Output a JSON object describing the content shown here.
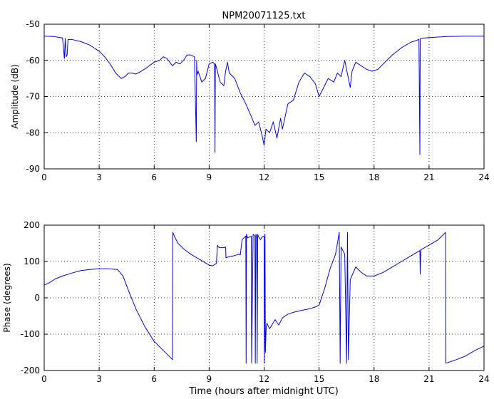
{
  "figure_title": "NPM20071125.txt",
  "chart_data": [
    {
      "type": "line",
      "title": "NPM20071125.txt",
      "xlabel": "",
      "ylabel": "Amplitude (dB)",
      "xlim": [
        0,
        24
      ],
      "ylim": [
        -90,
        -50
      ],
      "xticks": [
        0,
        3,
        6,
        9,
        12,
        15,
        18,
        21,
        24
      ],
      "yticks": [
        -90,
        -80,
        -70,
        -60,
        -50
      ],
      "grid": "dotted",
      "line_color": "#0000ff",
      "series": [
        {
          "name": "",
          "x": [
            0,
            0.5,
            1.0,
            1.1,
            1.15,
            1.2,
            1.25,
            1.3,
            1.5,
            2,
            2.5,
            3,
            3.3,
            3.6,
            3.9,
            4.2,
            4.4,
            4.6,
            4.8,
            5.0,
            5.3,
            5.6,
            6.0,
            6.3,
            6.5,
            6.7,
            7.0,
            7.2,
            7.4,
            7.6,
            7.8,
            8.0,
            8.2,
            8.3,
            8.32,
            8.34,
            8.4,
            8.6,
            8.8,
            9.0,
            9.2,
            9.3,
            9.32,
            9.34,
            9.4,
            9.6,
            9.8,
            9.9,
            10.0,
            10.1,
            10.4,
            10.7,
            11.0,
            11.3,
            11.5,
            11.7,
            11.9,
            12.0,
            12.1,
            12.3,
            12.5,
            12.7,
            12.9,
            13.0,
            13.3,
            13.6,
            13.9,
            14.2,
            14.5,
            14.8,
            15.0,
            15.2,
            15.5,
            15.8,
            16.0,
            16.2,
            16.4,
            16.6,
            16.7,
            16.8,
            17.0,
            17.3,
            17.6,
            17.9,
            18.2,
            18.5,
            19.0,
            19.5,
            20.0,
            20.3,
            20.45,
            20.5,
            20.52,
            20.6,
            21.0,
            22.0,
            23.0,
            24.0
          ],
          "values": [
            -53.3,
            -53.4,
            -53.8,
            -59.5,
            -54,
            -59,
            -58.5,
            -54.2,
            -54.2,
            -54.8,
            -55.8,
            -57.5,
            -59,
            -61,
            -63.5,
            -65,
            -64.5,
            -63.5,
            -63.5,
            -63.8,
            -63,
            -62,
            -60.5,
            -60,
            -59,
            -59.5,
            -61.5,
            -60.5,
            -61,
            -60,
            -58.5,
            -58.5,
            -59,
            -82.5,
            -60,
            -64,
            -63,
            -66,
            -65,
            -61,
            -60.5,
            -61,
            -85.5,
            -61,
            -62,
            -66,
            -67,
            -63,
            -60.5,
            -63.5,
            -65,
            -69,
            -72,
            -75.5,
            -78,
            -77,
            -81,
            -83.5,
            -79,
            -80,
            -77,
            -81.5,
            -76,
            -79,
            -72,
            -71,
            -66,
            -63.5,
            -64.5,
            -66.5,
            -70,
            -68,
            -65,
            -66,
            -63.5,
            -64.5,
            -60,
            -65,
            -67.5,
            -63,
            -60.5,
            -61.5,
            -62.5,
            -63,
            -62.5,
            -61,
            -58.5,
            -56.5,
            -55,
            -54.5,
            -54.2,
            -86,
            -54,
            -53.9,
            -53.7,
            -53.4,
            -53.3,
            -53.3
          ]
        }
      ]
    },
    {
      "type": "line",
      "title": "",
      "xlabel": "Time (hours after midnight UTC)",
      "ylabel": "Phase (degrees)",
      "xlim": [
        0,
        24
      ],
      "ylim": [
        -200,
        200
      ],
      "xticks": [
        0,
        3,
        6,
        9,
        12,
        15,
        18,
        21,
        24
      ],
      "yticks": [
        -200,
        -100,
        0,
        100,
        200
      ],
      "grid": "dotted",
      "line_color": "#0000ff",
      "series": [
        {
          "name": "",
          "x": [
            0,
            0.3,
            0.6,
            1.0,
            1.5,
            2.0,
            2.5,
            3.0,
            3.5,
            4.0,
            4.3,
            4.6,
            5.0,
            5.5,
            6.0,
            6.5,
            7.0,
            7.02,
            7.1,
            7.3,
            7.6,
            8.0,
            8.5,
            9.0,
            9.2,
            9.4,
            9.45,
            9.5,
            9.6,
            9.8,
            9.9,
            9.92,
            10.0,
            10.3,
            10.5,
            10.6,
            10.7,
            10.8,
            10.9,
            11.0,
            11.02,
            11.04,
            11.1,
            11.3,
            11.32,
            11.4,
            11.5,
            11.52,
            11.55,
            11.6,
            11.62,
            11.65,
            11.7,
            11.8,
            11.9,
            12.0,
            12.02,
            12.05,
            12.07,
            12.1,
            12.12,
            12.15,
            12.3,
            12.6,
            12.8,
            13.0,
            13.3,
            13.6,
            14.0,
            14.5,
            14.8,
            15.0,
            15.3,
            15.6,
            15.9,
            16.1,
            16.15,
            16.2,
            16.4,
            16.5,
            16.55,
            16.6,
            16.7,
            17.0,
            17.3,
            17.6,
            18.0,
            18.5,
            19.0,
            19.5,
            20.0,
            20.5,
            20.52,
            20.55,
            21.0,
            21.5,
            21.9,
            21.92,
            22.5,
            23.0,
            23.5,
            24.0
          ],
          "values": [
            35,
            42,
            52,
            60,
            68,
            75,
            78,
            80,
            80,
            78,
            60,
            20,
            -30,
            -80,
            -120,
            -145,
            -170,
            180,
            170,
            150,
            135,
            120,
            105,
            90,
            88,
            95,
            145,
            140,
            138,
            138,
            140,
            110,
            112,
            115,
            118,
            120,
            118,
            160,
            165,
            170,
            -180,
            175,
            165,
            170,
            -180,
            175,
            170,
            -180,
            175,
            168,
            -180,
            175,
            168,
            160,
            168,
            170,
            -180,
            175,
            -150,
            -100,
            -80,
            -70,
            -85,
            -60,
            -75,
            -55,
            -45,
            -40,
            -35,
            -30,
            -25,
            -20,
            25,
            80,
            120,
            180,
            -180,
            140,
            120,
            -180,
            180,
            -170,
            50,
            85,
            70,
            60,
            60,
            70,
            85,
            100,
            115,
            130,
            65,
            132,
            145,
            160,
            180,
            -180,
            -170,
            -160,
            -145,
            -133
          ]
        }
      ]
    }
  ]
}
